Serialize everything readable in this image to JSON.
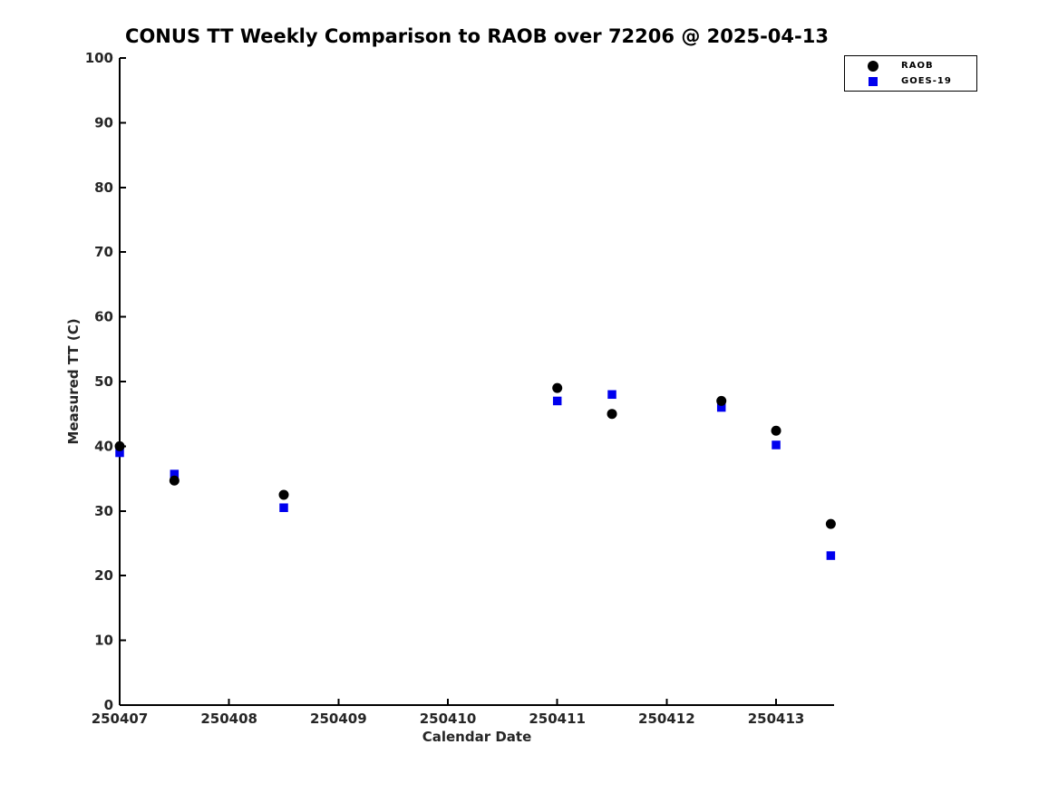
{
  "chart_data": {
    "type": "scatter",
    "title": "CONUS TT Weekly Comparison to RAOB over 72206 @ 2025-04-13",
    "xlabel": "Calendar Date",
    "ylabel": "Measured TT (C)",
    "xlim": [
      250407,
      250413.53
    ],
    "ylim": [
      0,
      100
    ],
    "xticks": [
      250407,
      250408,
      250409,
      250410,
      250411,
      250412,
      250413
    ],
    "xtick_labels": [
      "250407",
      "250408",
      "250409",
      "250410",
      "250411",
      "250412",
      "250413"
    ],
    "yticks": [
      0,
      10,
      20,
      30,
      40,
      50,
      60,
      70,
      80,
      90,
      100
    ],
    "ytick_labels": [
      "0",
      "10",
      "20",
      "30",
      "40",
      "50",
      "60",
      "70",
      "80",
      "90",
      "100"
    ],
    "grid": false,
    "legend_position": "top-right",
    "x": [
      250407,
      250407.5,
      250408.5,
      250411,
      250411.5,
      250412.5,
      250413,
      250413.5
    ],
    "series": [
      {
        "name": "RAOB",
        "marker": "circle",
        "color": "#000000",
        "values": [
          40.0,
          34.7,
          32.5,
          49.0,
          45.0,
          47.0,
          42.4,
          28.0
        ]
      },
      {
        "name": "GOES-19",
        "marker": "square",
        "color": "#0000ee",
        "values": [
          39.0,
          35.7,
          30.5,
          47.0,
          48.0,
          46.0,
          40.2,
          23.1
        ]
      }
    ],
    "axis_color": "#000000"
  }
}
